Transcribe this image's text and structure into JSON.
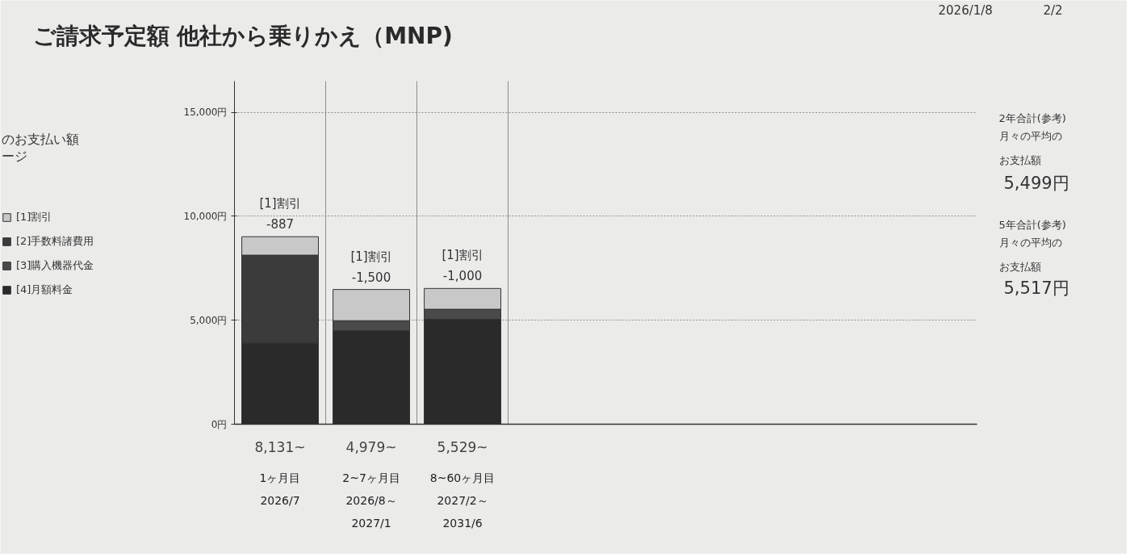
{
  "chart_data": {
    "type": "bar",
    "title": "ご請求予定額 他社から乗りかえ（MNP)",
    "legend_title": "のお支払い額ージ",
    "categories": [
      "1ヶ月目\n2026/7",
      "2~7ヶ月目\n2026/8～\n2027/1",
      "8~60ヶ月目\n2027/2～\n2031/6"
    ],
    "stacked": true,
    "series": [
      {
        "name": "[4]月額料金",
        "color": "#2a2a2a",
        "values": [
          3900,
          4500,
          5050
        ]
      },
      {
        "name": "[3]購入機器代金",
        "color": "#4a4a4a",
        "values": [
          null,
          479,
          479
        ]
      },
      {
        "name": "[2]手数料諸費用",
        "color": "#3b3b3b",
        "values": [
          4231,
          null,
          null
        ]
      },
      {
        "name": "[1]割引",
        "color": "#c8c8c8",
        "values": [
          887,
          1500,
          1000
        ],
        "value_labels": [
          "[1]割引\n-887",
          "[1]割引\n-1,500",
          "[1]割引\n-1,000"
        ]
      }
    ],
    "ylim": [
      0,
      16500
    ],
    "yticks": [
      {
        "value": 0,
        "label": "0円"
      },
      {
        "value": 5000,
        "label": "5,000円"
      },
      {
        "value": 10000,
        "label": "10,000円"
      },
      {
        "value": 15000,
        "label": "15,000円"
      }
    ],
    "grid": true,
    "legend": "left",
    "annotations": [
      "2026/1/8",
      "2/2",
      "2年合計(参考)",
      "月々の平均のお支払額",
      "5,499円",
      "5年合計(参考)",
      "月々の平均のお支払額",
      "5,517円",
      "8,131~",
      "4,979~",
      "5,529~"
    ]
  }
}
